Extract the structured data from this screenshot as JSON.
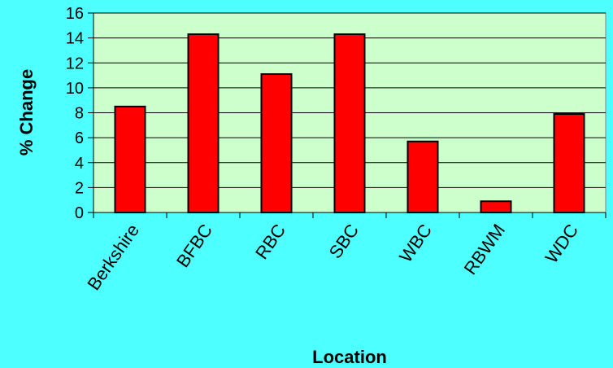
{
  "chart_data": {
    "type": "bar",
    "title": "",
    "xlabel": "Location",
    "ylabel": "% Change",
    "categories": [
      "Berkshire",
      "BFBC",
      "RBC",
      "SBC",
      "WBC",
      "RBWM",
      "WDC"
    ],
    "values": [
      8.5,
      14.3,
      11.1,
      14.3,
      5.7,
      0.9,
      7.9
    ],
    "ylim": [
      0,
      16
    ],
    "yticks": [
      "0",
      "2",
      "4",
      "6",
      "8",
      "10",
      "12",
      "14",
      "16"
    ],
    "grid": true,
    "legend": "none",
    "colors": {
      "background": "#4dffff",
      "plot_area": "#ccffcc",
      "bar_fill": "#ff0000",
      "bar_stroke": "#000000",
      "gridline": "#000000"
    }
  }
}
